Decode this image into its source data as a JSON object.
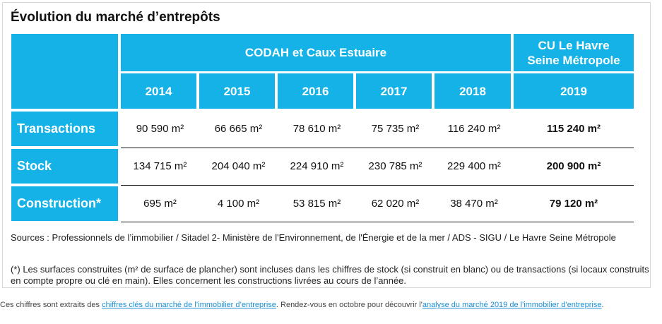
{
  "title": "Évolution du marché d’entrepôts",
  "header": {
    "group_label": "CODAH et Caux Estuaire",
    "right_group_label": "CU Le Havre Seine Métropole",
    "years": [
      "2014",
      "2015",
      "2016",
      "2017",
      "2018"
    ],
    "right_year": "2019"
  },
  "rows": [
    {
      "label": "Transactions",
      "values": [
        "90 590 m²",
        "66 665 m²",
        "78 610 m²",
        "75 735 m²",
        "116 240 m²"
      ],
      "last": "115 240 m²"
    },
    {
      "label": "Stock",
      "values": [
        "134 715 m²",
        "204 040 m²",
        "224 910 m²",
        "230 785 m²",
        "229 400 m²"
      ],
      "last": "200 900 m²"
    },
    {
      "label": "Construction*",
      "values": [
        "695 m²",
        "4 100 m²",
        "53 815 m²",
        "62 020 m²",
        "38 470  m²"
      ],
      "last": "79 120 m²"
    }
  ],
  "sources": "Sources : Professionnels de l’immobilier / Sitadel 2- Ministère de l'Environnement, de l'Énergie et de la mer / ADS - SIGU / Le Havre Seine Métropole",
  "note": "(*) Les surfaces construites (m² de surface de plancher) sont incluses dans les chiffres de stock (si construit en blanc) ou de transactions (si locaux construits en compte propre ou clé en main). Elles concernent les constructions livrées au cours de l’année.",
  "footer": {
    "text1": "Ces chiffres sont extraits des ",
    "link1": "chiffres clés du marché de l’immobilier d’entreprise",
    "text2": ". Rendez-vous en octobre pour découvrir l'",
    "link2": "analyse du marché 2019 de l'immobilier d'entreprise",
    "text3": "."
  },
  "colors": {
    "accent": "#14b2e6",
    "link": "#1a8fd6"
  }
}
